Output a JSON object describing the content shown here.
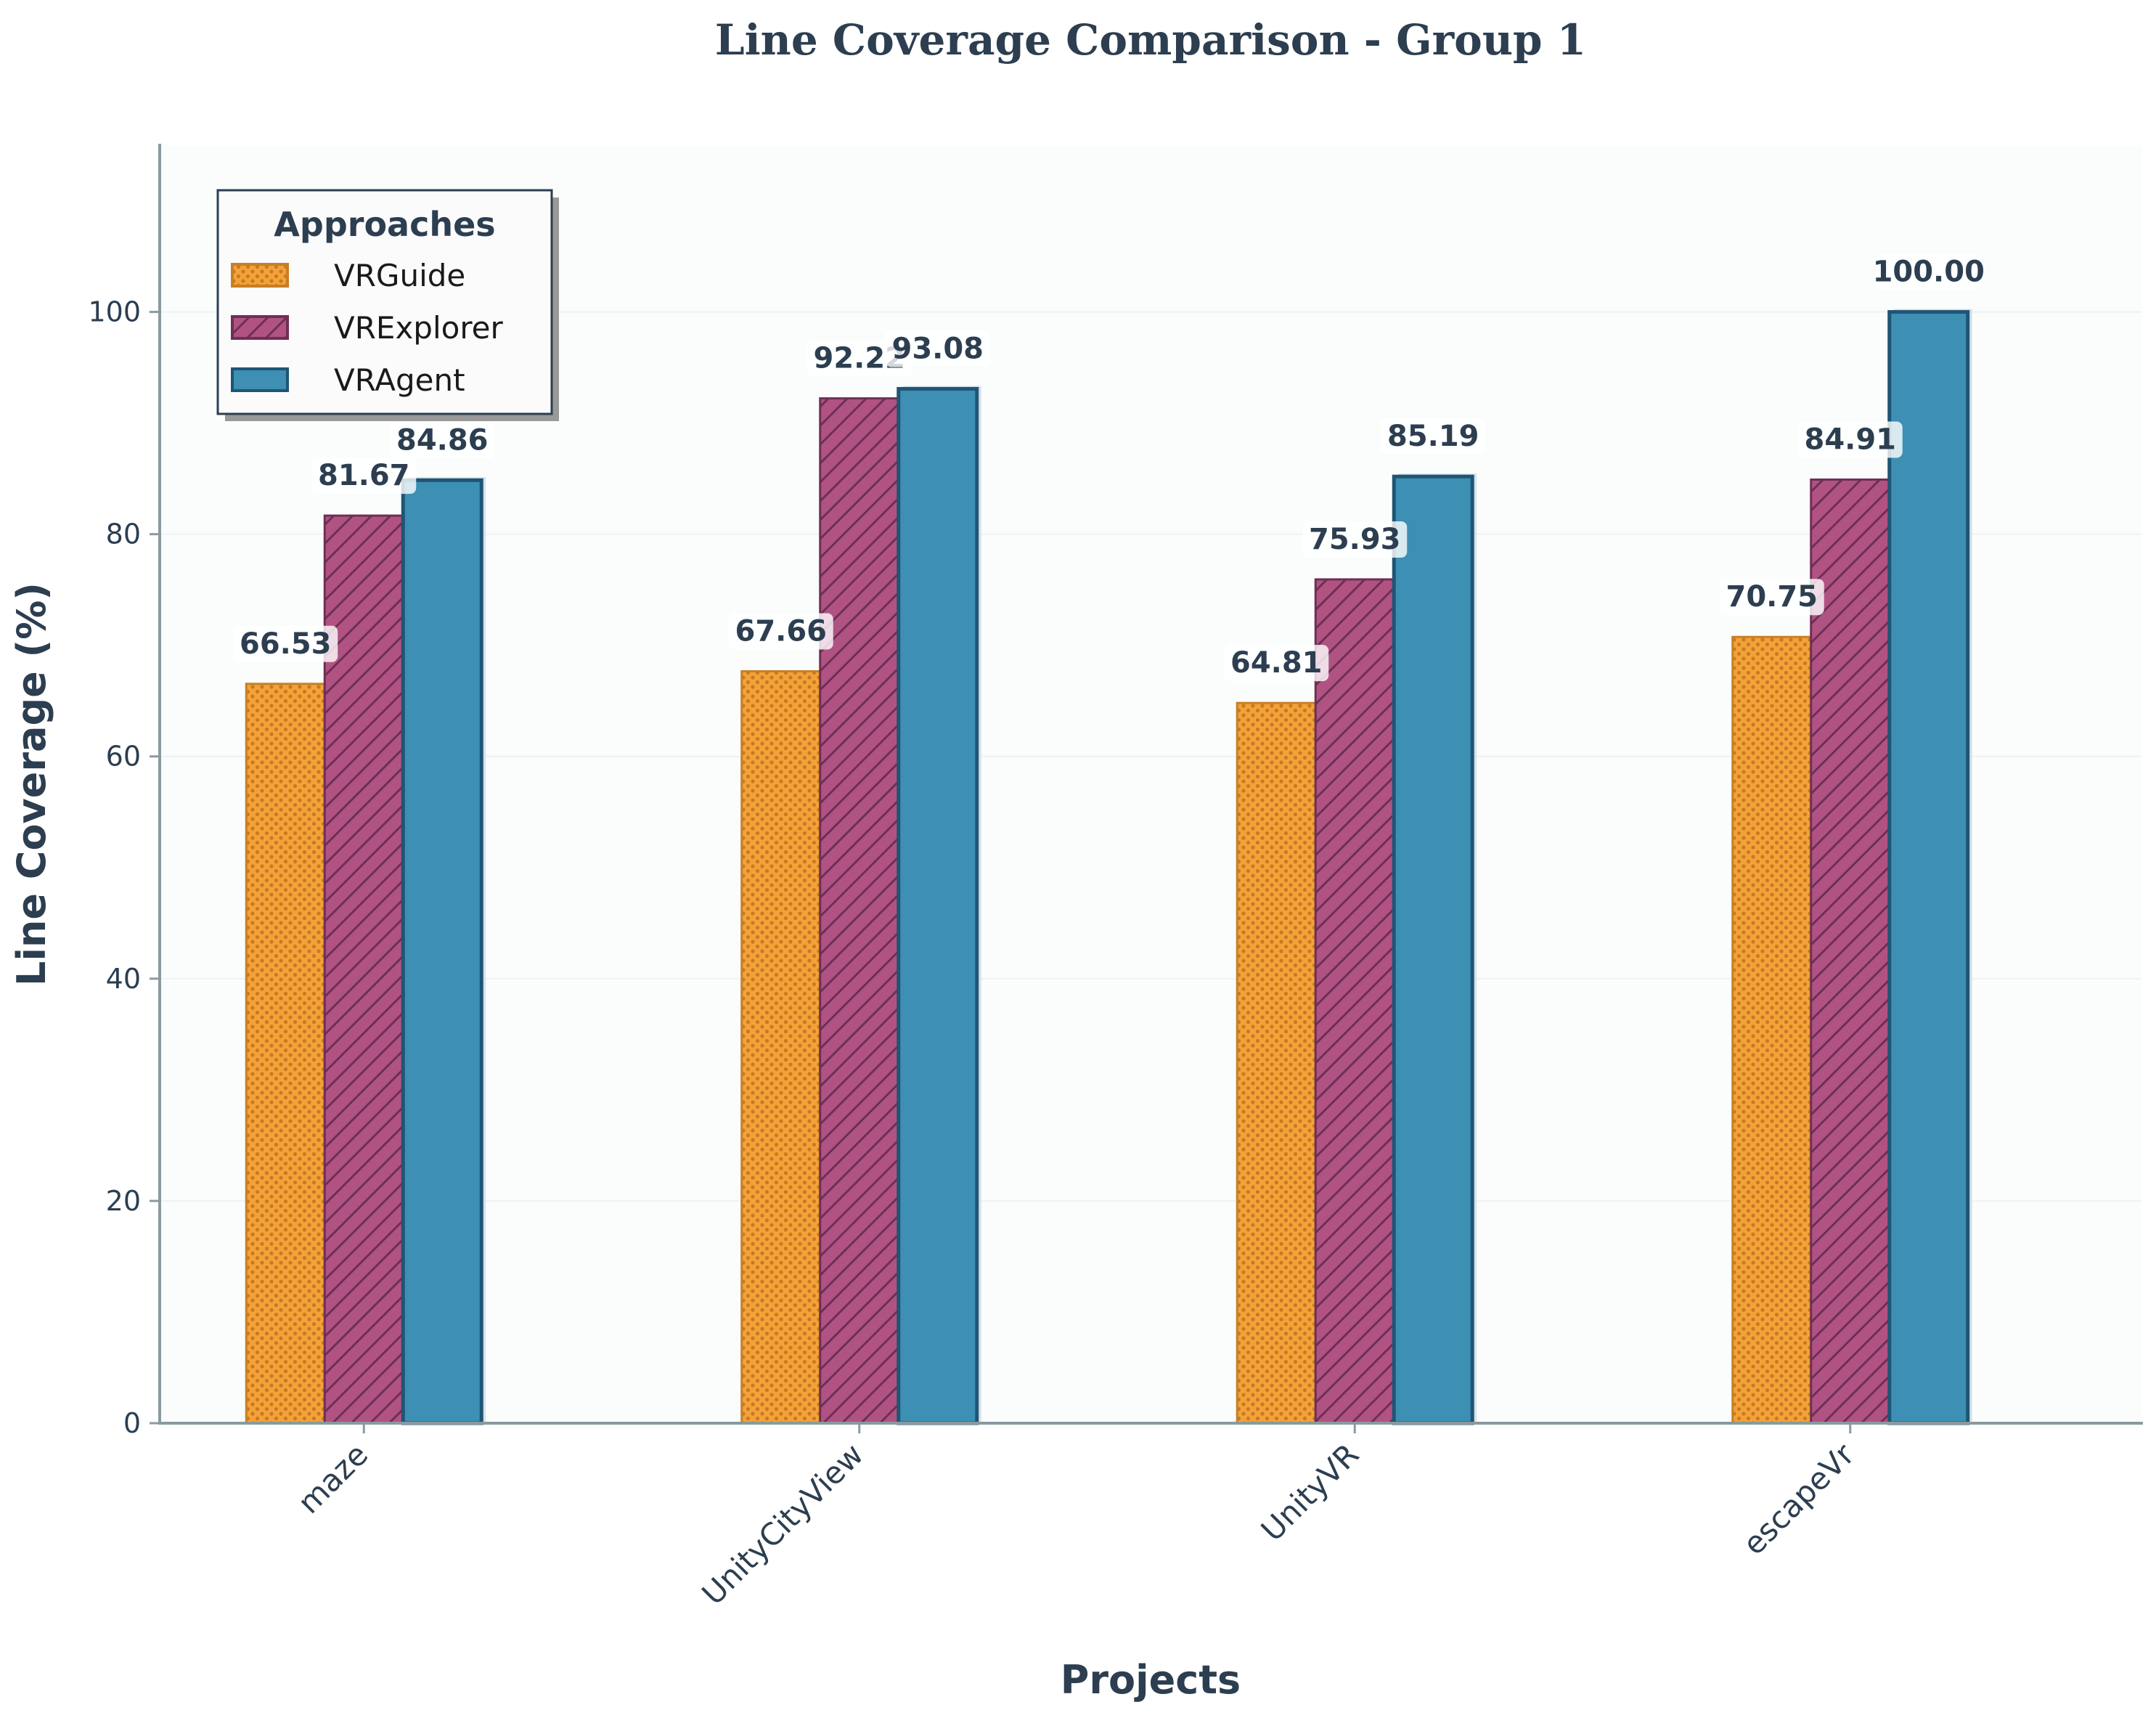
{
  "chart_data": {
    "type": "bar",
    "title": "Line Coverage Comparison - Group 1",
    "xlabel": "Projects",
    "ylabel": "Line Coverage (%)",
    "categories": [
      "maze",
      "UnityCityView",
      "UnityVR",
      "escapeVr"
    ],
    "series": [
      {
        "name": "VRGuide",
        "values": [
          66.53,
          67.66,
          64.81,
          70.75
        ],
        "labels": [
          "66.53",
          "67.66",
          "64.81",
          "70.75"
        ],
        "color": "#f4a236",
        "edge": "#c77f25",
        "hatch": "dots"
      },
      {
        "name": "VRExplorer",
        "values": [
          81.67,
          92.22,
          75.93,
          84.91
        ],
        "labels": [
          "81.67",
          "92.22",
          "75.93",
          "84.91"
        ],
        "color": "#b05383",
        "edge": "#6e2f55",
        "hatch": "diagonal"
      },
      {
        "name": "VRAgent",
        "values": [
          84.86,
          93.08,
          85.19,
          100.0
        ],
        "labels": [
          "84.86",
          "93.08",
          "85.19",
          "100.00"
        ],
        "color": "#3d8fb3",
        "edge": "#1f5574",
        "hatch": "none"
      }
    ],
    "ylim": [
      0,
      115
    ],
    "yticks": [
      0,
      20,
      40,
      60,
      80,
      100
    ],
    "grid": true,
    "legend": {
      "title": "Approaches",
      "placement": "top-left"
    }
  }
}
